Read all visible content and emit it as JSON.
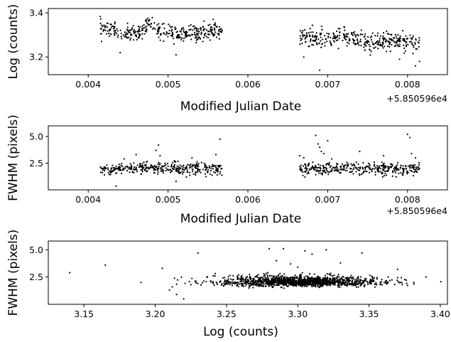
{
  "figure": {
    "background": "#ffffff",
    "marker_color": "#000000"
  },
  "chart_data": [
    {
      "type": "scatter",
      "title": "",
      "xlabel": "Modified Julian Date",
      "ylabel": "Log (counts)",
      "xlim": [
        0.0035,
        0.0085
      ],
      "ylim": [
        3.12,
        3.42
      ],
      "x_offset_label": "+5.850596e4",
      "xticks": [
        0.004,
        0.005,
        0.006,
        0.007,
        0.008
      ],
      "xtick_labels": [
        "0.004",
        "0.005",
        "0.006",
        "0.007",
        "0.008"
      ],
      "yticks": [
        3.2,
        3.4
      ],
      "ytick_labels": [
        "3.2",
        "3.4"
      ],
      "grid": false,
      "segments": [
        {
          "x_range": [
            0.00415,
            0.00568
          ],
          "y_trend": [
            [
              0.00415,
              3.335
            ],
            [
              0.0044,
              3.31
            ],
            [
              0.0046,
              3.3
            ],
            [
              0.00475,
              3.35
            ],
            [
              0.0049,
              3.32
            ],
            [
              0.0052,
              3.305
            ],
            [
              0.0054,
              3.31
            ],
            [
              0.00568,
              3.325
            ]
          ],
          "scatter": 0.018,
          "count": 360
        },
        {
          "x_range": [
            0.00665,
            0.00815
          ],
          "y_trend": [
            [
              0.00665,
              3.295
            ],
            [
              0.0069,
              3.275
            ],
            [
              0.0072,
              3.29
            ],
            [
              0.0075,
              3.265
            ],
            [
              0.0078,
              3.275
            ],
            [
              0.00815,
              3.265
            ]
          ],
          "scatter": 0.02,
          "count": 360
        }
      ],
      "outliers": [
        [
          0.0069,
          3.14
        ],
        [
          0.0081,
          3.16
        ],
        [
          0.0044,
          3.22
        ],
        [
          0.0051,
          3.21
        ],
        [
          0.0067,
          3.2
        ],
        [
          0.0079,
          3.19
        ],
        [
          0.00815,
          3.18
        ]
      ]
    },
    {
      "type": "scatter",
      "title": "",
      "xlabel": "Modified Julian Date",
      "ylabel": "FWHM (pixels)",
      "xlim": [
        0.0035,
        0.0085
      ],
      "ylim": [
        0.0,
        6.0
      ],
      "x_offset_label": "+5.850596e4",
      "xticks": [
        0.004,
        0.005,
        0.006,
        0.007,
        0.008
      ],
      "xtick_labels": [
        "0.004",
        "0.005",
        "0.006",
        "0.007",
        "0.008"
      ],
      "yticks": [
        2.5,
        5.0
      ],
      "ytick_labels": [
        "2.5",
        "5.0"
      ],
      "grid": false,
      "segments": [
        {
          "x_range": [
            0.00415,
            0.00568
          ],
          "y_trend": [
            [
              0.00415,
              1.9
            ],
            [
              0.0048,
              2.05
            ],
            [
              0.0052,
              2.0
            ],
            [
              0.00568,
              1.95
            ]
          ],
          "scatter": 0.28,
          "count": 360
        },
        {
          "x_range": [
            0.00665,
            0.00815
          ],
          "y_trend": [
            [
              0.00665,
              2.0
            ],
            [
              0.0075,
              1.95
            ],
            [
              0.00815,
              1.95
            ]
          ],
          "scatter": 0.28,
          "count": 360
        }
      ],
      "outliers": [
        [
          0.00435,
          0.35
        ],
        [
          0.00445,
          2.9
        ],
        [
          0.0046,
          3.3
        ],
        [
          0.00485,
          3.7
        ],
        [
          0.00488,
          4.2
        ],
        [
          0.0049,
          3.2
        ],
        [
          0.0051,
          0.8
        ],
        [
          0.0053,
          3.0
        ],
        [
          0.00565,
          4.75
        ],
        [
          0.0056,
          3.3
        ],
        [
          0.00665,
          3.2
        ],
        [
          0.0067,
          3.0
        ],
        [
          0.00685,
          5.1
        ],
        [
          0.00688,
          4.3
        ],
        [
          0.0069,
          4.0
        ],
        [
          0.00692,
          3.6
        ],
        [
          0.00695,
          3.4
        ],
        [
          0.007,
          4.6
        ],
        [
          0.00705,
          2.9
        ],
        [
          0.0074,
          3.6
        ],
        [
          0.0077,
          3.2
        ],
        [
          0.008,
          5.2
        ],
        [
          0.00803,
          4.9
        ],
        [
          0.00805,
          3.4
        ],
        [
          0.0081,
          3.0
        ]
      ]
    },
    {
      "type": "scatter",
      "title": "",
      "xlabel": "Log (counts)",
      "ylabel": "FWHM (pixels)",
      "xlim": [
        3.125,
        3.405
      ],
      "ylim": [
        0.0,
        5.8
      ],
      "xticks": [
        3.15,
        3.2,
        3.25,
        3.3,
        3.35,
        3.4
      ],
      "xtick_labels": [
        "3.15",
        "3.20",
        "3.25",
        "3.30",
        "3.35",
        "3.40"
      ],
      "yticks": [
        2.5,
        5.0
      ],
      "ytick_labels": [
        "2.5",
        "5.0"
      ],
      "grid": false,
      "cluster": {
        "x_center": 3.3,
        "x_sigma": 0.028,
        "y_center": 2.0,
        "y_sigma": 0.3,
        "count": 1400
      },
      "outliers": [
        [
          3.14,
          2.9
        ],
        [
          3.165,
          3.6
        ],
        [
          3.19,
          2.0
        ],
        [
          3.205,
          3.3
        ],
        [
          3.21,
          1.3
        ],
        [
          3.212,
          1.6
        ],
        [
          3.215,
          0.9
        ],
        [
          3.22,
          0.5
        ],
        [
          3.225,
          1.8
        ],
        [
          3.23,
          4.7
        ],
        [
          3.28,
          5.1
        ],
        [
          3.285,
          4.0
        ],
        [
          3.29,
          5.1
        ],
        [
          3.295,
          3.7
        ],
        [
          3.3,
          3.4
        ],
        [
          3.305,
          4.9
        ],
        [
          3.31,
          4.6
        ],
        [
          3.32,
          5.0
        ],
        [
          3.33,
          3.8
        ],
        [
          3.345,
          4.7
        ],
        [
          3.37,
          3.2
        ],
        [
          3.39,
          2.5
        ]
      ]
    }
  ]
}
